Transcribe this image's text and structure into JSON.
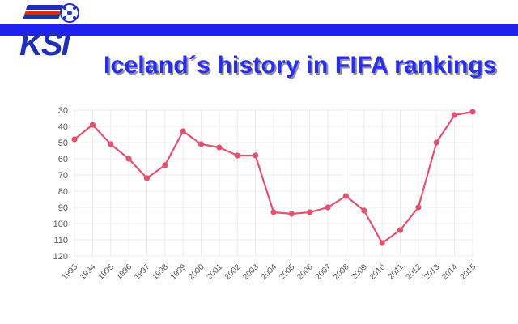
{
  "header": {
    "logo_text": "KSI",
    "title": "Iceland´s history in FIFA rankings"
  },
  "colors": {
    "band": "#1f22ee",
    "title": "#2b2ee8",
    "line": "#e0526f",
    "grid": "#ececec",
    "logo_red": "#e3261d",
    "logo_blue": "#1f2fb8"
  },
  "chart_data": {
    "type": "line",
    "title": "",
    "xlabel": "",
    "ylabel": "",
    "y_inverted": true,
    "ylim": [
      30,
      120
    ],
    "y_ticks": [
      30,
      40,
      50,
      60,
      70,
      80,
      90,
      100,
      110,
      120
    ],
    "grid": true,
    "categories": [
      "1993",
      "1994",
      "1995",
      "1996",
      "1997",
      "1998",
      "1999",
      "2000",
      "2001",
      "2002",
      "2003",
      "2004",
      "2005",
      "2006",
      "2007",
      "2008",
      "2009",
      "2010",
      "2011",
      "2012",
      "2013",
      "2014",
      "2015"
    ],
    "series": [
      {
        "values": [
          48,
          39,
          51,
          60,
          72,
          64,
          43,
          51,
          53,
          58,
          58,
          93,
          94,
          93,
          90,
          83,
          92,
          112,
          104,
          90,
          50,
          33,
          31
        ]
      }
    ]
  }
}
